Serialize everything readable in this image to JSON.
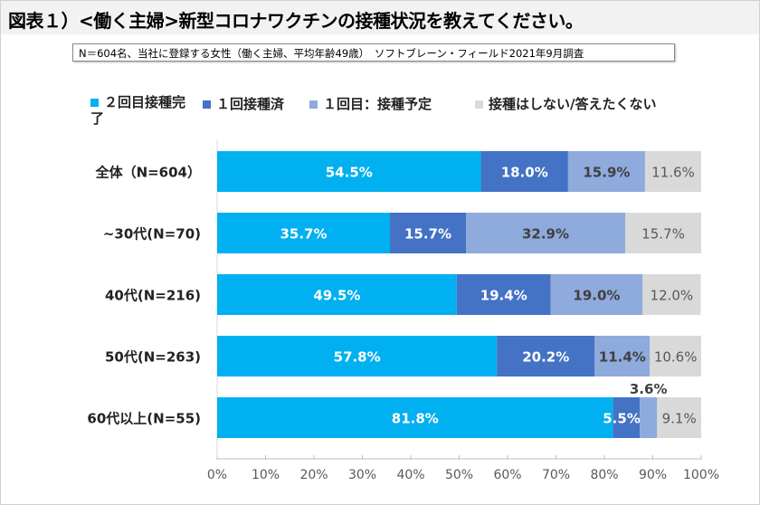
{
  "title": "図表１）<働く主婦>新型コロナワクチンの接種状況を教えてください。",
  "note": "N＝604名、当社に登録する女性（働く主婦、平均年齢49歳）　ソフトブレーン・フィールド2021年9月調査",
  "chart_data": {
    "type": "bar",
    "orientation": "horizontal",
    "stacked": true,
    "categories": [
      "全体（N=604）",
      "~30代(N=70)",
      "40代(N=216)",
      "50代(N=263)",
      "60代以上(N=55)"
    ],
    "series": [
      {
        "name": "２回目接種完了",
        "color": "#00b0f0",
        "values": [
          54.5,
          35.7,
          49.5,
          57.8,
          81.8
        ]
      },
      {
        "name": "１回接種済",
        "color": "#4472c4",
        "values": [
          18.0,
          15.7,
          19.4,
          20.2,
          5.5
        ]
      },
      {
        "name": "１回目：接種予定",
        "color": "#8faadc",
        "values": [
          15.9,
          32.9,
          19.0,
          11.4,
          3.6
        ]
      },
      {
        "name": "接種はしない/答えたくない",
        "color": "#d9d9d9",
        "values": [
          11.6,
          15.7,
          12.0,
          10.6,
          9.1
        ]
      }
    ],
    "xlim": [
      0,
      100
    ],
    "xticks": [
      "0%",
      "10%",
      "20%",
      "30%",
      "40%",
      "50%",
      "60%",
      "70%",
      "80%",
      "90%",
      "100%"
    ],
    "legend_position": "top",
    "grid": false
  }
}
